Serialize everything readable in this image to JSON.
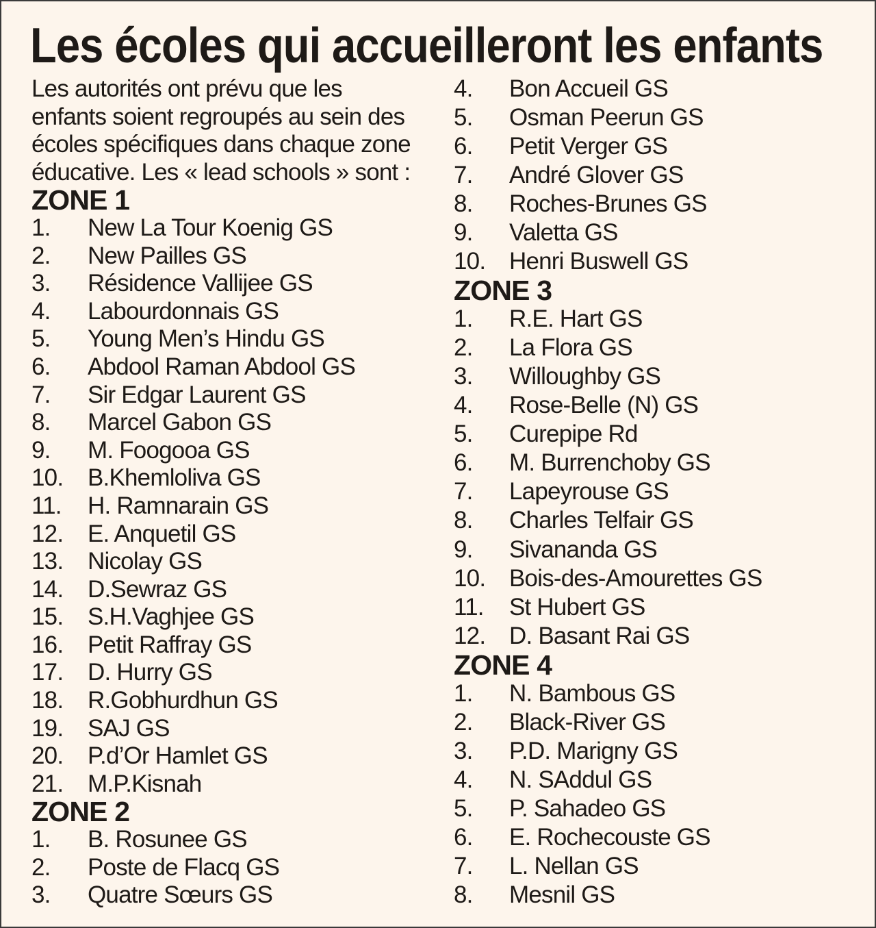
{
  "title": "Les écoles qui accueilleront les enfants",
  "intro": [
    "Les autorités ont prévu que les",
    "enfants soient regroupés au sein des",
    "écoles spécifiques dans chaque zone",
    "éducative. Les « lead schools » sont :"
  ],
  "zones": [
    {
      "label": "ZONE 1",
      "schools": [
        {
          "num": "1.",
          "name": "New La Tour Koenig GS"
        },
        {
          "num": "2.",
          "name": "New Pailles GS"
        },
        {
          "num": "3.",
          "name": "Résidence Vallijee GS"
        },
        {
          "num": "4.",
          "name": "Labourdonnais GS"
        },
        {
          "num": "5.",
          "name": "Young Men’s Hindu GS"
        },
        {
          "num": "6.",
          "name": "Abdool Raman Abdool GS"
        },
        {
          "num": "7.",
          "name": "Sir Edgar Laurent GS"
        },
        {
          "num": "8.",
          "name": "Marcel Gabon GS"
        },
        {
          "num": "9.",
          "name": "M. Foogooa GS"
        },
        {
          "num": "10.",
          "name": "B.Khemloliva GS"
        },
        {
          "num": "11.",
          "name": "H. Ramnarain GS"
        },
        {
          "num": "12.",
          "name": "E. Anquetil GS"
        },
        {
          "num": "13.",
          "name": "Nicolay GS"
        },
        {
          "num": "14.",
          "name": "D.Sewraz GS"
        },
        {
          "num": "15.",
          "name": "S.H.Vaghjee GS"
        },
        {
          "num": "16.",
          "name": "Petit Raffray GS"
        },
        {
          "num": "17.",
          "name": "D. Hurry GS"
        },
        {
          "num": "18.",
          "name": "R.Gobhurdhun GS"
        },
        {
          "num": "19.",
          "name": "SAJ GS"
        },
        {
          "num": "20.",
          "name": "P.d’Or Hamlet GS"
        },
        {
          "num": "21.",
          "name": "M.P.Kisnah"
        }
      ]
    },
    {
      "label": "ZONE 2",
      "schools": [
        {
          "num": "1.",
          "name": "B. Rosunee GS"
        },
        {
          "num": "2.",
          "name": "Poste de Flacq GS"
        },
        {
          "num": "3.",
          "name": "Quatre Sœurs GS"
        },
        {
          "num": "4.",
          "name": "Bon Accueil GS"
        },
        {
          "num": "5.",
          "name": "Osman Peerun GS"
        },
        {
          "num": "6.",
          "name": "Petit Verger GS"
        },
        {
          "num": "7.",
          "name": "André Glover GS"
        },
        {
          "num": "8.",
          "name": "Roches-Brunes GS"
        },
        {
          "num": "9.",
          "name": "Valetta GS"
        },
        {
          "num": "10.",
          "name": "Henri Buswell GS"
        }
      ]
    },
    {
      "label": "ZONE 3",
      "schools": [
        {
          "num": "1.",
          "name": "R.E. Hart GS"
        },
        {
          "num": "2.",
          "name": "La Flora GS"
        },
        {
          "num": "3.",
          "name": "Willoughby GS"
        },
        {
          "num": "4.",
          "name": "Rose-Belle (N) GS"
        },
        {
          "num": "5.",
          "name": "Curepipe Rd"
        },
        {
          "num": "6.",
          "name": "M. Burrenchoby GS"
        },
        {
          "num": "7.",
          "name": "Lapeyrouse GS"
        },
        {
          "num": "8.",
          "name": "Charles Telfair GS"
        },
        {
          "num": "9.",
          "name": "Sivananda GS"
        },
        {
          "num": "10.",
          "name": "Bois-des-Amourettes GS"
        },
        {
          "num": "11.",
          "name": "St Hubert GS"
        },
        {
          "num": "12.",
          "name": "D. Basant Rai GS"
        }
      ]
    },
    {
      "label": "ZONE 4",
      "schools": [
        {
          "num": "1.",
          "name": "N. Bambous GS"
        },
        {
          "num": "2.",
          "name": "Black-River GS"
        },
        {
          "num": "3.",
          "name": "P.D. Marigny GS"
        },
        {
          "num": "4.",
          "name": "N. SAddul GS"
        },
        {
          "num": "5.",
          "name": "P. Sahadeo GS"
        },
        {
          "num": "6.",
          "name": "E. Rochecouste GS"
        },
        {
          "num": "7.",
          "name": "L. Nellan GS"
        },
        {
          "num": "8.",
          "name": "Mesnil GS"
        }
      ]
    }
  ]
}
